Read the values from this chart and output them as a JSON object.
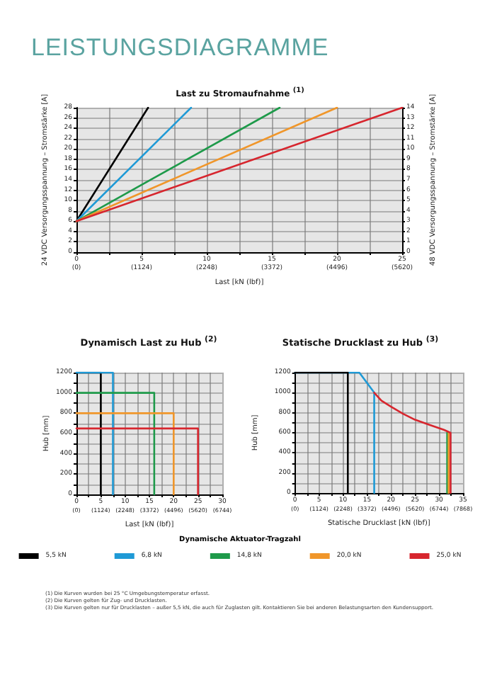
{
  "chart_data": [
    {
      "type": "line",
      "title": "LEISTUNGSDIAGRAMME",
      "subtitle": "Last zu Stromaufnahme $^{(1)}$",
      "xlabel": "Last [kN (lbf)]",
      "ylabel": "24 VDC Versorgungsspannung – Stromstärke [A]",
      "y2label": "48 VDC Versorgungsspannung – Stromstärke [A]",
      "xlim": [
        0,
        25
      ],
      "xticks": [
        0,
        {
          "value": 2.5,
          "label": null
        },
        5,
        {
          "value": 7.5,
          "label": null
        },
        10,
        {
          "value": 12.5,
          "label": null
        },
        15,
        {
          "value": 17.5,
          "label": null
        },
        20,
        {
          "value": 22.5,
          "label": null
        },
        25
      ],
      "x2lim": [
        0,
        5620
      ],
      "x2ticks": [
        {
          "value": 0,
          "label": "(0)"
        },
        {
          "value": 1124,
          "label": "(1124)"
        },
        {
          "value": 2248,
          "label": "(2248)"
        },
        {
          "value": 3372,
          "label": "(3372)"
        },
        {
          "value": 4496,
          "label": "(4496)"
        },
        {
          "value": 5620,
          "label": "(5620)"
        }
      ],
      "ylim": [
        0,
        28
      ],
      "yticks": [
        0,
        2,
        4,
        6,
        8,
        10,
        12,
        14,
        16,
        18,
        20,
        22,
        24,
        26,
        28
      ],
      "y2lim": [
        0,
        14
      ],
      "y2ticks": [
        0,
        1,
        2,
        3,
        4,
        5,
        6,
        7,
        8,
        9,
        10,
        11,
        12,
        13,
        14
      ],
      "grid": true,
      "series": [
        {
          "color": "#000000",
          "x": [
            0,
            5.5
          ],
          "values": [
            6,
            28
          ]
        },
        {
          "color": "#1f9ad6",
          "x": [
            0,
            8.8
          ],
          "values": [
            6,
            28
          ]
        },
        {
          "color": "#1e9a4a",
          "x": [
            0,
            15.6
          ],
          "values": [
            6,
            28
          ]
        },
        {
          "color": "#f0962a",
          "x": [
            0,
            20
          ],
          "values": [
            6,
            28
          ]
        },
        {
          "color": "#d7262e",
          "x": [
            0,
            25
          ],
          "values": [
            6,
            28
          ]
        }
      ]
    },
    {
      "type": "line",
      "title": "Dynamisch Last zu Hub $^{(2)}$",
      "xlabel": "Last [kN (lbf)]",
      "ylabel": "Hub [mm]",
      "xlim": [
        0,
        30
      ],
      "xticks": [
        0,
        {
          "value": 2.5,
          "label": null
        },
        5,
        {
          "value": 7.5,
          "label": null
        },
        10,
        {
          "value": 12.5,
          "label": null
        },
        15,
        {
          "value": 17.5,
          "label": null
        },
        20,
        {
          "value": 22.5,
          "label": null
        },
        25,
        {
          "value": 27.5,
          "label": null
        },
        30
      ],
      "x2lim": [
        0,
        6744
      ],
      "x2ticks": [
        {
          "value": 0,
          "label": "(0)"
        },
        {
          "value": 1124,
          "label": "(1124)"
        },
        {
          "value": 2248,
          "label": "(2248)"
        },
        {
          "value": 3372,
          "label": "(3372)"
        },
        {
          "value": 4496,
          "label": "(4496)"
        },
        {
          "value": 5620,
          "label": "(5620)"
        },
        {
          "value": 6744,
          "label": "(6744)"
        }
      ],
      "ylim": [
        0,
        1200
      ],
      "yticks": [
        0,
        {
          "value": 100,
          "label": null
        },
        200,
        {
          "value": 300,
          "label": null
        },
        400,
        {
          "value": 500,
          "label": null
        },
        600,
        {
          "value": 700,
          "label": null
        },
        800,
        {
          "value": 900,
          "label": null
        },
        1000,
        {
          "value": 1100,
          "label": null
        },
        1200
      ],
      "grid": true,
      "legend": "bottom",
      "legend_title": "Dynamische Aktuator-Tragzahl",
      "series": [
        {
          "name": "5,5 kN",
          "color": "#000000",
          "x": [
            0,
            5,
            5
          ],
          "values": [
            1200,
            1200,
            0
          ]
        },
        {
          "name": "6,8 kN",
          "color": "#1f9ad6",
          "x": [
            0,
            7.5,
            7.5
          ],
          "values": [
            1200,
            1200,
            0
          ]
        },
        {
          "name": "14,8 kN",
          "color": "#1e9a4a",
          "x": [
            0,
            16,
            16
          ],
          "values": [
            1000,
            1000,
            0
          ]
        },
        {
          "name": "20,0 kN",
          "color": "#f0962a",
          "x": [
            0,
            20,
            20
          ],
          "values": [
            800,
            800,
            0
          ]
        },
        {
          "name": "25,0 kN",
          "color": "#d7262e",
          "x": [
            0,
            25,
            25
          ],
          "values": [
            650,
            650,
            0
          ]
        }
      ],
      "annotations": [
        "(1) Die Kurven wurden bei 25 °C Umgebungstemperatur erfasst.",
        "(2) Die Kurven gelten für Zug- und Drucklasten.",
        "(3) Die Kurven gelten nur für Drucklasten – außer 5,5 kN, die auch für Zuglasten gilt. Kontaktieren Sie bei anderen Belastungsarten den Kundensupport."
      ]
    },
    {
      "type": "line",
      "title": "Statische Drucklast zu Hub $^{(3)}$",
      "xlabel": "Statische Drucklast [kN (lbf)]",
      "ylabel": "Hub [mm]",
      "xlim": [
        0,
        35
      ],
      "xticks": [
        0,
        {
          "value": 2.5,
          "label": null
        },
        5,
        {
          "value": 7.5,
          "label": null
        },
        10,
        {
          "value": 12.5,
          "label": null
        },
        15,
        {
          "value": 17.5,
          "label": null
        },
        20,
        {
          "value": 22.5,
          "label": null
        },
        25,
        {
          "value": 27.5,
          "label": null
        },
        30,
        {
          "value": 32.5,
          "label": null
        },
        35
      ],
      "x2lim": [
        0,
        7868
      ],
      "x2ticks": [
        {
          "value": 0,
          "label": "(0)"
        },
        {
          "value": 1124,
          "label": "(1124)"
        },
        {
          "value": 2248,
          "label": "(2248)"
        },
        {
          "value": 3372,
          "label": "(3372)"
        },
        {
          "value": 4496,
          "label": "(4496)"
        },
        {
          "value": 5620,
          "label": "(5620)"
        },
        {
          "value": 6744,
          "label": "(6744)"
        },
        {
          "value": 7868,
          "label": "(7868)"
        }
      ],
      "ylim": [
        0,
        1200
      ],
      "yticks": [
        0,
        {
          "value": 100,
          "label": null
        },
        200,
        {
          "value": 300,
          "label": null
        },
        400,
        {
          "value": 500,
          "label": null
        },
        600,
        {
          "value": 700,
          "label": null
        },
        800,
        {
          "value": 900,
          "label": null
        },
        1000,
        {
          "value": 1100,
          "label": null
        },
        1200
      ],
      "grid": true,
      "series": [
        {
          "color": "#1f9ad6",
          "x": [
            0,
            13.4,
            16.5,
            16.5
          ],
          "values": [
            1200,
            1200,
            1000,
            0
          ]
        },
        {
          "color": "#000000",
          "x": [
            0,
            11,
            11
          ],
          "values": [
            1200,
            1200,
            0
          ]
        },
        {
          "color": "#1e9a4a",
          "x": [
            31.7,
            31.7
          ],
          "values": [
            600,
            0
          ]
        },
        {
          "color": "#f0962a",
          "x": [
            32,
            32
          ],
          "values": [
            600,
            0
          ]
        },
        {
          "color": "#d7262e",
          "x": [
            16.5,
            18,
            20,
            22.5,
            25,
            28,
            31,
            32.4,
            32.4
          ],
          "values": [
            1000,
            920,
            860,
            790,
            730,
            680,
            630,
            600,
            0
          ]
        }
      ]
    }
  ]
}
